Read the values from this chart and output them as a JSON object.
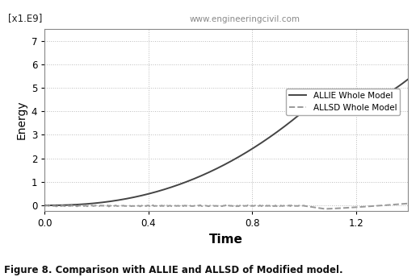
{
  "title_annotation": "www.engineeringcivil.com",
  "ylabel": "Energy",
  "xlabel": "Time",
  "ylabel_scale": "[x1.E9]",
  "caption": "Figure 8. Comparison with ALLIE and ALLSD of Modified model.",
  "xlim": [
    0.0,
    1.4
  ],
  "ylim": [
    -0.25,
    7.5
  ],
  "yticks": [
    0.0,
    1.0,
    2.0,
    3.0,
    4.0,
    5.0,
    6.0,
    7.0
  ],
  "xticks": [
    0.0,
    0.4,
    0.8,
    1.2
  ],
  "legend_labels": [
    "ALLIE Whole Model",
    "ALLSD Whole Model"
  ],
  "line1_color": "#444444",
  "line2_color": "#999999",
  "background_color": "#ffffff",
  "grid_color": "#bbbbbb",
  "watermark_color": "#888888"
}
